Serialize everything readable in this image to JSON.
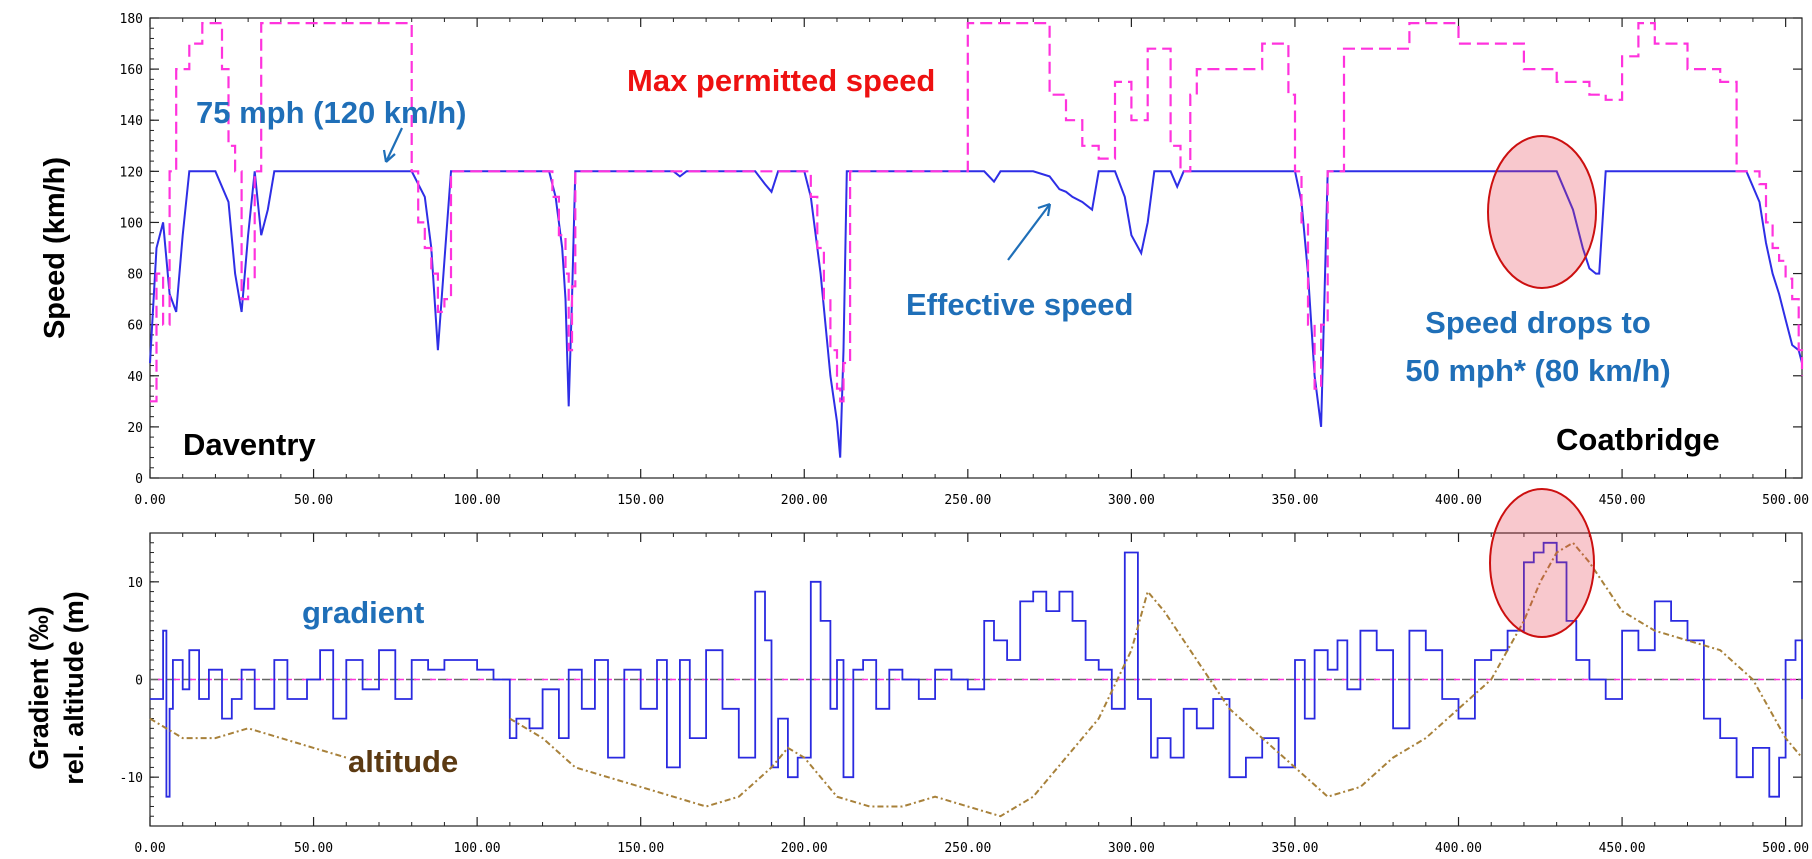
{
  "colors": {
    "effective_speed": "#2e2ee6",
    "max_speed": "#ff33dd",
    "gradient": "#2a2ae0",
    "altitude": "#a8813a",
    "annotation_blue": "#1f6fb8",
    "annotation_red": "#ee1111",
    "altitude_label": "#5c3a12",
    "highlight": "#e63a4a"
  },
  "chart_data": [
    {
      "type": "line",
      "ylabel": "Speed (km/h)",
      "xlim": [
        0,
        505
      ],
      "ylim": [
        0,
        180
      ],
      "x_ticks": [
        "0.00",
        "50.00",
        "100.00",
        "150.00",
        "200.00",
        "250.00",
        "300.00",
        "350.00",
        "400.00",
        "450.00",
        "500.00"
      ],
      "y_ticks": [
        "0",
        "20",
        "40",
        "60",
        "80",
        "100",
        "120",
        "140",
        "160",
        "180"
      ],
      "grid": false,
      "annotations": {
        "max_speed": "Max permitted speed",
        "speed_75": "75 mph (120 km/h)",
        "effective": "Effective speed",
        "drop_line1": "Speed drops to",
        "drop_line2": "50 mph* (80 km/h)",
        "start": "Daventry",
        "end": "Coatbridge"
      },
      "series": [
        {
          "key": "effective",
          "x": [
            0,
            2,
            4,
            6,
            8,
            10,
            12,
            14,
            16,
            20,
            24,
            26,
            28,
            30,
            32,
            34,
            36,
            38,
            40,
            42,
            80,
            84,
            86,
            88,
            90,
            92,
            96,
            122,
            124,
            126,
            127,
            128,
            129,
            130,
            132,
            160,
            162,
            164,
            185,
            188,
            190,
            192,
            200,
            202,
            205,
            208,
            210,
            211,
            212,
            213,
            215,
            225,
            255,
            258,
            260,
            270,
            275,
            278,
            280,
            282,
            285,
            288,
            290,
            295,
            298,
            300,
            303,
            305,
            307,
            312,
            314,
            316,
            318,
            345,
            350,
            352,
            354,
            356,
            358,
            360,
            420,
            425,
            430,
            435,
            438,
            440,
            442,
            443,
            445,
            485,
            488,
            492,
            494,
            496,
            498,
            500,
            502,
            504,
            505
          ],
          "values": [
            45,
            90,
            100,
            72,
            65,
            95,
            120,
            120,
            120,
            120,
            108,
            80,
            65,
            95,
            120,
            95,
            105,
            120,
            120,
            120,
            120,
            110,
            90,
            50,
            85,
            120,
            120,
            120,
            110,
            90,
            70,
            28,
            70,
            120,
            120,
            120,
            118,
            120,
            120,
            115,
            112,
            120,
            120,
            110,
            80,
            40,
            22,
            8,
            50,
            120,
            120,
            120,
            120,
            116,
            120,
            120,
            118,
            113,
            112,
            110,
            108,
            105,
            120,
            120,
            110,
            95,
            88,
            100,
            120,
            120,
            114,
            120,
            120,
            120,
            120,
            108,
            80,
            40,
            20,
            120,
            120,
            120,
            120,
            105,
            90,
            82,
            80,
            80,
            120,
            120,
            120,
            108,
            92,
            80,
            72,
            62,
            52,
            50,
            45
          ]
        },
        {
          "key": "max",
          "x": [
            0,
            2,
            4,
            6,
            8,
            10,
            12,
            14,
            16,
            18,
            20,
            22,
            24,
            26,
            28,
            30,
            32,
            34,
            36,
            38,
            40,
            50,
            52,
            70,
            75,
            80,
            82,
            84,
            86,
            88,
            90,
            92,
            95,
            120,
            123,
            125,
            127,
            128,
            129,
            130,
            132,
            135,
            140,
            160,
            163,
            165,
            175,
            180,
            185,
            188,
            190,
            192,
            198,
            200,
            202,
            204,
            206,
            208,
            210,
            211,
            212,
            214,
            216,
            220,
            240,
            245,
            250,
            255,
            260,
            270,
            275,
            280,
            285,
            290,
            295,
            300,
            305,
            310,
            312,
            315,
            318,
            320,
            330,
            340,
            345,
            348,
            350,
            352,
            354,
            356,
            358,
            360,
            365,
            380,
            385,
            390,
            395,
            400,
            410,
            420,
            425,
            430,
            435,
            440,
            445,
            450,
            455,
            460,
            470,
            475,
            480,
            485,
            488,
            490,
            492,
            494,
            496,
            498,
            500,
            502,
            504,
            505
          ],
          "values": [
            30,
            80,
            60,
            120,
            160,
            160,
            170,
            170,
            178,
            178,
            178,
            160,
            130,
            120,
            70,
            78,
            120,
            178,
            178,
            178,
            178,
            178,
            178,
            178,
            178,
            120,
            100,
            90,
            80,
            65,
            70,
            120,
            120,
            120,
            110,
            95,
            80,
            50,
            75,
            120,
            120,
            120,
            120,
            120,
            120,
            120,
            120,
            120,
            120,
            120,
            120,
            120,
            120,
            120,
            110,
            90,
            70,
            50,
            35,
            30,
            45,
            120,
            120,
            120,
            120,
            120,
            178,
            178,
            178,
            178,
            150,
            140,
            130,
            125,
            155,
            140,
            168,
            168,
            130,
            120,
            150,
            160,
            160,
            170,
            170,
            150,
            120,
            100,
            60,
            35,
            60,
            120,
            168,
            168,
            178,
            178,
            178,
            170,
            170,
            160,
            160,
            155,
            155,
            150,
            148,
            165,
            178,
            170,
            160,
            160,
            155,
            120,
            120,
            120,
            115,
            100,
            90,
            85,
            78,
            70,
            50,
            40
          ]
        }
      ]
    },
    {
      "type": "line",
      "ylabel_line1": "Gradient (‰)",
      "ylabel_line2": "rel. altitude (m)",
      "xlim": [
        0,
        505
      ],
      "ylim": [
        -15,
        15
      ],
      "x_ticks": [
        "0.00",
        "50.00",
        "100.00",
        "150.00",
        "200.00",
        "250.00",
        "300.00",
        "350.00",
        "400.00",
        "450.00",
        "500.00"
      ],
      "y_ticks": [
        "-10",
        "0",
        "10"
      ],
      "grid": false,
      "annotations": {
        "gradient": "gradient",
        "altitude": "altitude"
      },
      "series": [
        {
          "key": "gradient",
          "x": [
            0,
            4,
            5,
            6,
            7,
            10,
            12,
            15,
            18,
            22,
            25,
            28,
            32,
            38,
            42,
            48,
            52,
            56,
            60,
            65,
            70,
            75,
            80,
            85,
            90,
            95,
            100,
            105,
            110,
            112,
            116,
            120,
            125,
            128,
            132,
            136,
            140,
            145,
            150,
            155,
            158,
            162,
            165,
            170,
            175,
            180,
            185,
            188,
            190,
            192,
            195,
            198,
            202,
            205,
            208,
            210,
            212,
            215,
            218,
            222,
            226,
            230,
            235,
            240,
            245,
            250,
            255,
            258,
            262,
            266,
            270,
            274,
            278,
            282,
            286,
            290,
            294,
            298,
            300,
            302,
            306,
            308,
            312,
            316,
            320,
            325,
            330,
            335,
            340,
            345,
            350,
            353,
            356,
            360,
            363,
            366,
            370,
            375,
            380,
            385,
            390,
            395,
            400,
            405,
            410,
            415,
            420,
            423,
            426,
            430,
            433,
            436,
            440,
            445,
            450,
            455,
            460,
            465,
            470,
            475,
            480,
            485,
            490,
            495,
            498,
            500,
            503,
            505
          ],
          "values": [
            -2,
            5,
            -12,
            -3,
            2,
            -1,
            3,
            -2,
            1,
            -4,
            -2,
            1,
            -3,
            2,
            -2,
            0,
            3,
            -4,
            2,
            -1,
            3,
            -2,
            2,
            1,
            2,
            2,
            1,
            0,
            -6,
            -4,
            -5,
            -1,
            -6,
            1,
            -3,
            2,
            -8,
            1,
            -3,
            2,
            -9,
            2,
            -6,
            3,
            -3,
            -8,
            9,
            4,
            -9,
            -4,
            -10,
            -8,
            10,
            6,
            -3,
            2,
            -10,
            1,
            2,
            -3,
            1,
            0,
            -2,
            1,
            0,
            -1,
            6,
            4,
            2,
            8,
            9,
            7,
            9,
            6,
            2,
            1,
            -3,
            13,
            13,
            -2,
            -8,
            -6,
            -8,
            -3,
            -5,
            -2,
            -10,
            -8,
            -6,
            -9,
            2,
            -4,
            3,
            1,
            4,
            -1,
            5,
            3,
            -5,
            5,
            3,
            -2,
            -4,
            2,
            3,
            5,
            12,
            13,
            14,
            12,
            6,
            2,
            0,
            -2,
            5,
            3,
            8,
            6,
            4,
            -4,
            -6,
            -10,
            -7,
            -12,
            -8,
            2,
            4,
            -2
          ]
        },
        {
          "key": "altitude",
          "x": [
            0,
            10,
            20,
            30,
            40,
            50,
            60,
            70,
            80,
            90,
            100,
            105,
            110,
            120,
            130,
            140,
            150,
            160,
            170,
            180,
            190,
            195,
            200,
            210,
            220,
            230,
            240,
            250,
            260,
            270,
            280,
            290,
            300,
            305,
            310,
            320,
            330,
            340,
            350,
            360,
            370,
            380,
            390,
            400,
            410,
            420,
            425,
            430,
            435,
            440,
            450,
            460,
            470,
            480,
            490,
            500,
            505
          ],
          "values": [
            -4,
            -6,
            -6,
            -5,
            -6,
            -7,
            -8,
            null,
            null,
            null,
            null,
            null,
            -4,
            -6,
            -9,
            -10,
            -11,
            -12,
            -13,
            -12,
            -9,
            -7,
            -8,
            -12,
            -13,
            -13,
            -12,
            -13,
            -14,
            -12,
            -8,
            -4,
            3,
            9,
            7,
            2,
            -3,
            -6,
            -9,
            -12,
            -11,
            -8,
            -6,
            -3,
            0,
            6,
            10,
            13,
            14,
            12,
            7,
            5,
            4,
            3,
            0,
            -6,
            -8
          ]
        }
      ]
    }
  ]
}
